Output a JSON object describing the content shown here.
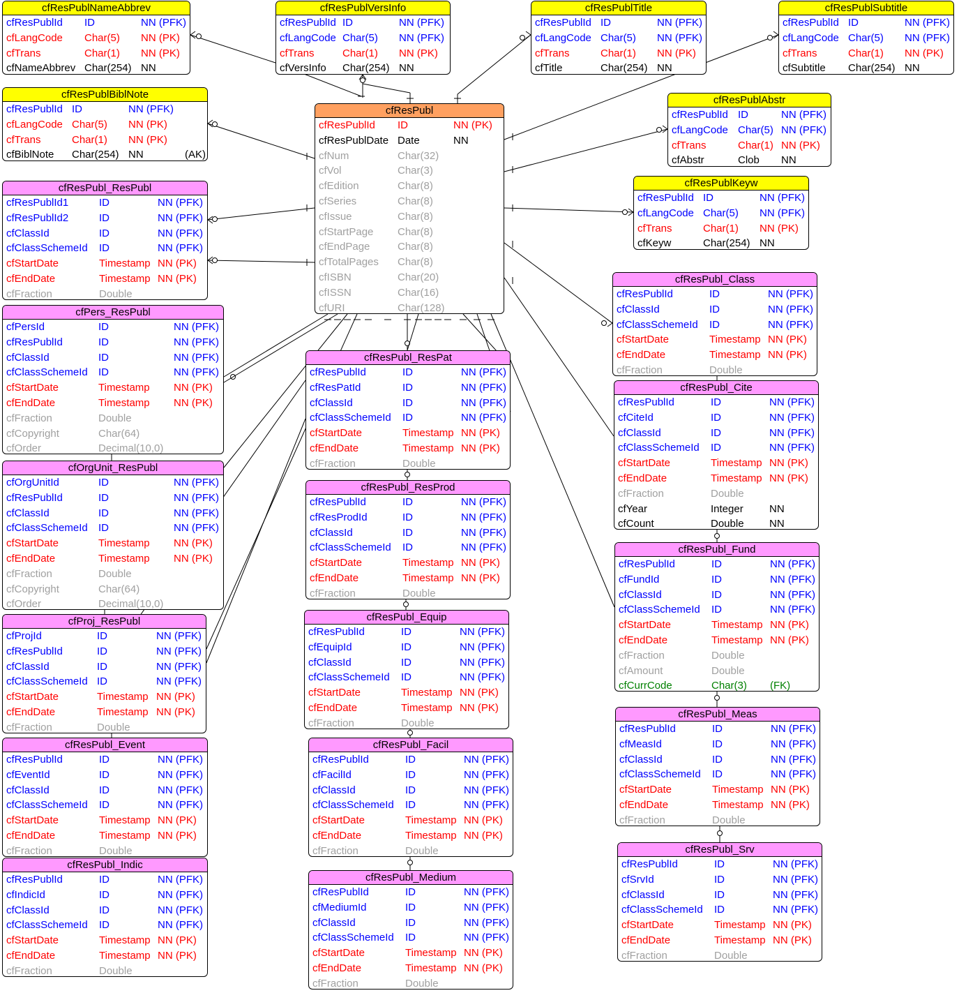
{
  "colors": {
    "title_child": "#ffff00",
    "title_link": "#ff99ff",
    "title_main": "#ffa060",
    "key": "#0000ff",
    "pk": "#ff0000",
    "opt": "#a0a0a0",
    "norm": "#000000",
    "fk": "#008000"
  },
  "entities": [
    {
      "id": "cfResPublNameAbbrev",
      "name": "cfResPublNameAbbrev",
      "kind": "child",
      "rows": [
        [
          "cfResPublId",
          "ID",
          "NN (PFK)",
          "key"
        ],
        [
          "cfLangCode",
          "Char(5)",
          "NN (PK)",
          "pk"
        ],
        [
          "cfTrans",
          "Char(1)",
          "NN (PK)",
          "pk"
        ],
        [
          "cfNameAbbrev",
          "Char(254)",
          "NN",
          "norm"
        ]
      ]
    },
    {
      "id": "cfResPublVersInfo",
      "name": "cfResPublVersInfo",
      "kind": "child",
      "rows": [
        [
          "cfResPublId",
          "ID",
          "NN (PFK)",
          "key"
        ],
        [
          "cfLangCode",
          "Char(5)",
          "NN (PFK)",
          "key"
        ],
        [
          "cfTrans",
          "Char(1)",
          "NN (PK)",
          "pk"
        ],
        [
          "cfVersInfo",
          "Char(254)",
          "NN",
          "norm"
        ]
      ]
    },
    {
      "id": "cfResPublTitle",
      "name": "cfResPublTitle",
      "kind": "child",
      "rows": [
        [
          "cfResPublId",
          "ID",
          "NN (PFK)",
          "key"
        ],
        [
          "cfLangCode",
          "Char(5)",
          "NN (PFK)",
          "key"
        ],
        [
          "cfTrans",
          "Char(1)",
          "NN (PK)",
          "pk"
        ],
        [
          "cfTitle",
          "Char(254)",
          "NN",
          "norm"
        ]
      ]
    },
    {
      "id": "cfResPublSubtitle",
      "name": "cfResPublSubtitle",
      "kind": "child",
      "rows": [
        [
          "cfResPublId",
          "ID",
          "NN (PFK)",
          "key"
        ],
        [
          "cfLangCode",
          "Char(5)",
          "NN (PFK)",
          "key"
        ],
        [
          "cfTrans",
          "Char(1)",
          "NN (PK)",
          "pk"
        ],
        [
          "cfSubtitle",
          "Char(254)",
          "NN",
          "norm"
        ]
      ]
    },
    {
      "id": "cfResPublBiblNote",
      "name": "cfResPublBiblNote",
      "kind": "child",
      "rows": [
        [
          "cfResPublId",
          "ID",
          "NN (PFK)",
          "key"
        ],
        [
          "cfLangCode",
          "Char(5)",
          "NN (PK)",
          "pk"
        ],
        [
          "cfTrans",
          "Char(1)",
          "NN (PK)",
          "pk"
        ],
        [
          "cfBiblNote",
          "Char(254)",
          "NN",
          "norm",
          "(AK)"
        ]
      ]
    },
    {
      "id": "cfResPublAbstr",
      "name": "cfResPublAbstr",
      "kind": "child",
      "rows": [
        [
          "cfResPublId",
          "ID",
          "NN (PFK)",
          "key"
        ],
        [
          "cfLangCode",
          "Char(5)",
          "NN (PFK)",
          "key"
        ],
        [
          "cfTrans",
          "Char(1)",
          "NN (PK)",
          "pk"
        ],
        [
          "cfAbstr",
          "Clob",
          "NN",
          "norm"
        ]
      ]
    },
    {
      "id": "cfResPublKeyw",
      "name": "cfResPublKeyw",
      "kind": "child",
      "rows": [
        [
          "cfResPublId",
          "ID",
          "NN (PFK)",
          "key"
        ],
        [
          "cfLangCode",
          "Char(5)",
          "NN (PFK)",
          "key"
        ],
        [
          "cfTrans",
          "Char(1)",
          "NN (PK)",
          "pk"
        ],
        [
          "cfKeyw",
          "Char(254)",
          "NN",
          "norm"
        ]
      ]
    },
    {
      "id": "cfResPubl",
      "name": "cfResPubl",
      "kind": "main",
      "rows": [
        [
          "cfResPublId",
          "ID",
          "NN (PK)",
          "pk"
        ],
        [
          "cfResPublDate",
          "Date",
          "NN",
          "norm"
        ],
        [
          "cfNum",
          "Char(32)",
          "",
          "opt"
        ],
        [
          "cfVol",
          "Char(3)",
          "",
          "opt"
        ],
        [
          "cfEdition",
          "Char(8)",
          "",
          "opt"
        ],
        [
          "cfSeries",
          "Char(8)",
          "",
          "opt"
        ],
        [
          "cfIssue",
          "Char(8)",
          "",
          "opt"
        ],
        [
          "cfStartPage",
          "Char(8)",
          "",
          "opt"
        ],
        [
          "cfEndPage",
          "Char(8)",
          "",
          "opt"
        ],
        [
          "cfTotalPages",
          "Char(8)",
          "",
          "opt"
        ],
        [
          "cfISBN",
          "Char(20)",
          "",
          "opt"
        ],
        [
          "cfISSN",
          "Char(16)",
          "",
          "opt"
        ],
        [
          "cfURI",
          "Char(128)",
          "",
          "opt"
        ]
      ]
    },
    {
      "id": "cfResPubl_ResPubl",
      "name": "cfResPubl_ResPubl",
      "kind": "link",
      "rows": [
        [
          "cfResPublId1",
          "ID",
          "NN (PFK)",
          "key"
        ],
        [
          "cfResPublId2",
          "ID",
          "NN (PFK)",
          "key"
        ],
        [
          "cfClassId",
          "ID",
          "NN (PFK)",
          "key"
        ],
        [
          "cfClassSchemeId",
          "ID",
          "NN (PFK)",
          "key"
        ],
        [
          "cfStartDate",
          "Timestamp",
          "NN (PK)",
          "pk"
        ],
        [
          "cfEndDate",
          "Timestamp",
          "NN (PK)",
          "pk"
        ],
        [
          "cfFraction",
          "Double",
          "",
          "opt"
        ]
      ]
    },
    {
      "id": "cfPers_ResPubl",
      "name": "cfPers_ResPubl",
      "kind": "link",
      "rows": [
        [
          "cfPersId",
          "ID",
          "NN (PFK)",
          "key"
        ],
        [
          "cfResPublId",
          "ID",
          "NN (PFK)",
          "key"
        ],
        [
          "cfClassId",
          "ID",
          "NN (PFK)",
          "key"
        ],
        [
          "cfClassSchemeId",
          "ID",
          "NN (PFK)",
          "key"
        ],
        [
          "cfStartDate",
          "Timestamp",
          "NN (PK)",
          "pk"
        ],
        [
          "cfEndDate",
          "Timestamp",
          "NN (PK)",
          "pk"
        ],
        [
          "cfFraction",
          "Double",
          "",
          "opt"
        ],
        [
          "cfCopyright",
          "Char(64)",
          "",
          "opt"
        ],
        [
          "cfOrder",
          "Decimal(10,0)",
          "",
          "opt"
        ]
      ]
    },
    {
      "id": "cfOrgUnit_ResPubl",
      "name": "cfOrgUnit_ResPubl",
      "kind": "link",
      "rows": [
        [
          "cfOrgUnitId",
          "ID",
          "NN (PFK)",
          "key"
        ],
        [
          "cfResPublId",
          "ID",
          "NN (PFK)",
          "key"
        ],
        [
          "cfClassId",
          "ID",
          "NN (PFK)",
          "key"
        ],
        [
          "cfClassSchemeId",
          "ID",
          "NN (PFK)",
          "key"
        ],
        [
          "cfStartDate",
          "Timestamp",
          "NN (PK)",
          "pk"
        ],
        [
          "cfEndDate",
          "Timestamp",
          "NN (PK)",
          "pk"
        ],
        [
          "cfFraction",
          "Double",
          "",
          "opt"
        ],
        [
          "cfCopyright",
          "Char(64)",
          "",
          "opt"
        ],
        [
          "cfOrder",
          "Decimal(10,0)",
          "",
          "opt"
        ]
      ]
    },
    {
      "id": "cfProj_ResPubl",
      "name": "cfProj_ResPubl",
      "kind": "link",
      "rows": [
        [
          "cfProjId",
          "ID",
          "NN (PFK)",
          "key"
        ],
        [
          "cfResPublId",
          "ID",
          "NN (PFK)",
          "key"
        ],
        [
          "cfClassId",
          "ID",
          "NN (PFK)",
          "key"
        ],
        [
          "cfClassSchemeId",
          "ID",
          "NN (PFK)",
          "key"
        ],
        [
          "cfStartDate",
          "Timestamp",
          "NN (PK)",
          "pk"
        ],
        [
          "cfEndDate",
          "Timestamp",
          "NN (PK)",
          "pk"
        ],
        [
          "cfFraction",
          "Double",
          "",
          "opt"
        ]
      ]
    },
    {
      "id": "cfResPubl_Event",
      "name": "cfResPubl_Event",
      "kind": "link",
      "rows": [
        [
          "cfResPublId",
          "ID",
          "NN (PFK)",
          "key"
        ],
        [
          "cfEventId",
          "ID",
          "NN (PFK)",
          "key"
        ],
        [
          "cfClassId",
          "ID",
          "NN (PFK)",
          "key"
        ],
        [
          "cfClassSchemeId",
          "ID",
          "NN (PFK)",
          "key"
        ],
        [
          "cfStartDate",
          "Timestamp",
          "NN (PK)",
          "pk"
        ],
        [
          "cfEndDate",
          "Timestamp",
          "NN (PK)",
          "pk"
        ],
        [
          "cfFraction",
          "Double",
          "",
          "opt"
        ]
      ]
    },
    {
      "id": "cfResPubl_Indic",
      "name": "cfResPubl_Indic",
      "kind": "link",
      "rows": [
        [
          "cfResPublId",
          "ID",
          "NN (PFK)",
          "key"
        ],
        [
          "cfIndicId",
          "ID",
          "NN (PFK)",
          "key"
        ],
        [
          "cfClassId",
          "ID",
          "NN (PFK)",
          "key"
        ],
        [
          "cfClassSchemeId",
          "ID",
          "NN (PFK)",
          "key"
        ],
        [
          "cfStartDate",
          "Timestamp",
          "NN (PK)",
          "pk"
        ],
        [
          "cfEndDate",
          "Timestamp",
          "NN (PK)",
          "pk"
        ],
        [
          "cfFraction",
          "Double",
          "",
          "opt"
        ]
      ]
    },
    {
      "id": "cfResPubl_ResPat",
      "name": "cfResPubl_ResPat",
      "kind": "link",
      "rows": [
        [
          "cfResPublId",
          "ID",
          "NN (PFK)",
          "key"
        ],
        [
          "cfResPatId",
          "ID",
          "NN (PFK)",
          "key"
        ],
        [
          "cfClassId",
          "ID",
          "NN (PFK)",
          "key"
        ],
        [
          "cfClassSchemeId",
          "ID",
          "NN (PFK)",
          "key"
        ],
        [
          "cfStartDate",
          "Timestamp",
          "NN (PK)",
          "pk"
        ],
        [
          "cfEndDate",
          "Timestamp",
          "NN (PK)",
          "pk"
        ],
        [
          "cfFraction",
          "Double",
          "",
          "opt"
        ]
      ]
    },
    {
      "id": "cfResPubl_ResProd",
      "name": "cfResPubl_ResProd",
      "kind": "link",
      "rows": [
        [
          "cfResPublId",
          "ID",
          "NN (PFK)",
          "key"
        ],
        [
          "cfResProdId",
          "ID",
          "NN (PFK)",
          "key"
        ],
        [
          "cfClassId",
          "ID",
          "NN (PFK)",
          "key"
        ],
        [
          "cfClassSchemeId",
          "ID",
          "NN (PFK)",
          "key"
        ],
        [
          "cfStartDate",
          "Timestamp",
          "NN (PK)",
          "pk"
        ],
        [
          "cfEndDate",
          "Timestamp",
          "NN (PK)",
          "pk"
        ],
        [
          "cfFraction",
          "Double",
          "",
          "opt"
        ]
      ]
    },
    {
      "id": "cfResPubl_Equip",
      "name": "cfResPubl_Equip",
      "kind": "link",
      "rows": [
        [
          "cfResPublId",
          "ID",
          "NN (PFK)",
          "key"
        ],
        [
          "cfEquipId",
          "ID",
          "NN (PFK)",
          "key"
        ],
        [
          "cfClassId",
          "ID",
          "NN (PFK)",
          "key"
        ],
        [
          "cfClassSchemeId",
          "ID",
          "NN (PFK)",
          "key"
        ],
        [
          "cfStartDate",
          "Timestamp",
          "NN (PK)",
          "pk"
        ],
        [
          "cfEndDate",
          "Timestamp",
          "NN (PK)",
          "pk"
        ],
        [
          "cfFraction",
          "Double",
          "",
          "opt"
        ]
      ]
    },
    {
      "id": "cfResPubl_Facil",
      "name": "cfResPubl_Facil",
      "kind": "link",
      "rows": [
        [
          "cfResPublId",
          "ID",
          "NN (PFK)",
          "key"
        ],
        [
          "cfFacilId",
          "ID",
          "NN (PFK)",
          "key"
        ],
        [
          "cfClassId",
          "ID",
          "NN (PFK)",
          "key"
        ],
        [
          "cfClassSchemeId",
          "ID",
          "NN (PFK)",
          "key"
        ],
        [
          "cfStartDate",
          "Timestamp",
          "NN (PK)",
          "pk"
        ],
        [
          "cfEndDate",
          "Timestamp",
          "NN (PK)",
          "pk"
        ],
        [
          "cfFraction",
          "Double",
          "",
          "opt"
        ]
      ]
    },
    {
      "id": "cfResPubl_Medium",
      "name": "cfResPubl_Medium",
      "kind": "link",
      "rows": [
        [
          "cfResPublId",
          "ID",
          "NN (PFK)",
          "key"
        ],
        [
          "cfMediumId",
          "ID",
          "NN (PFK)",
          "key"
        ],
        [
          "cfClassId",
          "ID",
          "NN (PFK)",
          "key"
        ],
        [
          "cfClassSchemeId",
          "ID",
          "NN (PFK)",
          "key"
        ],
        [
          "cfStartDate",
          "Timestamp",
          "NN (PK)",
          "pk"
        ],
        [
          "cfEndDate",
          "Timestamp",
          "NN (PK)",
          "pk"
        ],
        [
          "cfFraction",
          "Double",
          "",
          "opt"
        ]
      ]
    },
    {
      "id": "cfResPubl_Class",
      "name": "cfResPubl_Class",
      "kind": "link",
      "rows": [
        [
          "cfResPublId",
          "ID",
          "NN (PFK)",
          "key"
        ],
        [
          "cfClassId",
          "ID",
          "NN (PFK)",
          "key"
        ],
        [
          "cfClassSchemeId",
          "ID",
          "NN (PFK)",
          "key"
        ],
        [
          "cfStartDate",
          "Timestamp",
          "NN (PK)",
          "pk"
        ],
        [
          "cfEndDate",
          "Timestamp",
          "NN (PK)",
          "pk"
        ],
        [
          "cfFraction",
          "Double",
          "",
          "opt"
        ]
      ]
    },
    {
      "id": "cfResPubl_Cite",
      "name": "cfResPubl_Cite",
      "kind": "link",
      "rows": [
        [
          "cfResPublId",
          "ID",
          "NN (PFK)",
          "key"
        ],
        [
          "cfCiteId",
          "ID",
          "NN (PFK)",
          "key"
        ],
        [
          "cfClassId",
          "ID",
          "NN (PFK)",
          "key"
        ],
        [
          "cfClassSchemeId",
          "ID",
          "NN (PFK)",
          "key"
        ],
        [
          "cfStartDate",
          "Timestamp",
          "NN (PK)",
          "pk"
        ],
        [
          "cfEndDate",
          "Timestamp",
          "NN (PK)",
          "pk"
        ],
        [
          "cfFraction",
          "Double",
          "",
          "opt"
        ],
        [
          "cfYear",
          "Integer",
          "NN",
          "norm"
        ],
        [
          "cfCount",
          "Double",
          "NN",
          "norm"
        ]
      ]
    },
    {
      "id": "cfResPubl_Fund",
      "name": "cfResPubl_Fund",
      "kind": "link",
      "rows": [
        [
          "cfResPublId",
          "ID",
          "NN (PFK)",
          "key"
        ],
        [
          "cfFundId",
          "ID",
          "NN (PFK)",
          "key"
        ],
        [
          "cfClassId",
          "ID",
          "NN (PFK)",
          "key"
        ],
        [
          "cfClassSchemeId",
          "ID",
          "NN (PFK)",
          "key"
        ],
        [
          "cfStartDate",
          "Timestamp",
          "NN (PK)",
          "pk"
        ],
        [
          "cfEndDate",
          "Timestamp",
          "NN (PK)",
          "pk"
        ],
        [
          "cfFraction",
          "Double",
          "",
          "opt"
        ],
        [
          "cfAmount",
          "Double",
          "",
          "opt"
        ],
        [
          "cfCurrCode",
          "Char(3)",
          "(FK)",
          "fk"
        ]
      ]
    },
    {
      "id": "cfResPubl_Meas",
      "name": "cfResPubl_Meas",
      "kind": "link",
      "rows": [
        [
          "cfResPublId",
          "ID",
          "NN (PFK)",
          "key"
        ],
        [
          "cfMeasId",
          "ID",
          "NN (PFK)",
          "key"
        ],
        [
          "cfClassId",
          "ID",
          "NN (PFK)",
          "key"
        ],
        [
          "cfClassSchemeId",
          "ID",
          "NN (PFK)",
          "key"
        ],
        [
          "cfStartDate",
          "Timestamp",
          "NN (PK)",
          "pk"
        ],
        [
          "cfEndDate",
          "Timestamp",
          "NN (PK)",
          "pk"
        ],
        [
          "cfFraction",
          "Double",
          "",
          "opt"
        ]
      ]
    },
    {
      "id": "cfResPubl_Srv",
      "name": "cfResPubl_Srv",
      "kind": "link",
      "rows": [
        [
          "cfResPublId",
          "ID",
          "NN (PFK)",
          "key"
        ],
        [
          "cfSrvId",
          "ID",
          "NN (PFK)",
          "key"
        ],
        [
          "cfClassId",
          "ID",
          "NN (PFK)",
          "key"
        ],
        [
          "cfClassSchemeId",
          "ID",
          "NN (PFK)",
          "key"
        ],
        [
          "cfStartDate",
          "Timestamp",
          "NN (PK)",
          "pk"
        ],
        [
          "cfEndDate",
          "Timestamp",
          "NN (PK)",
          "pk"
        ],
        [
          "cfFraction",
          "Double",
          "",
          "opt"
        ]
      ]
    }
  ]
}
